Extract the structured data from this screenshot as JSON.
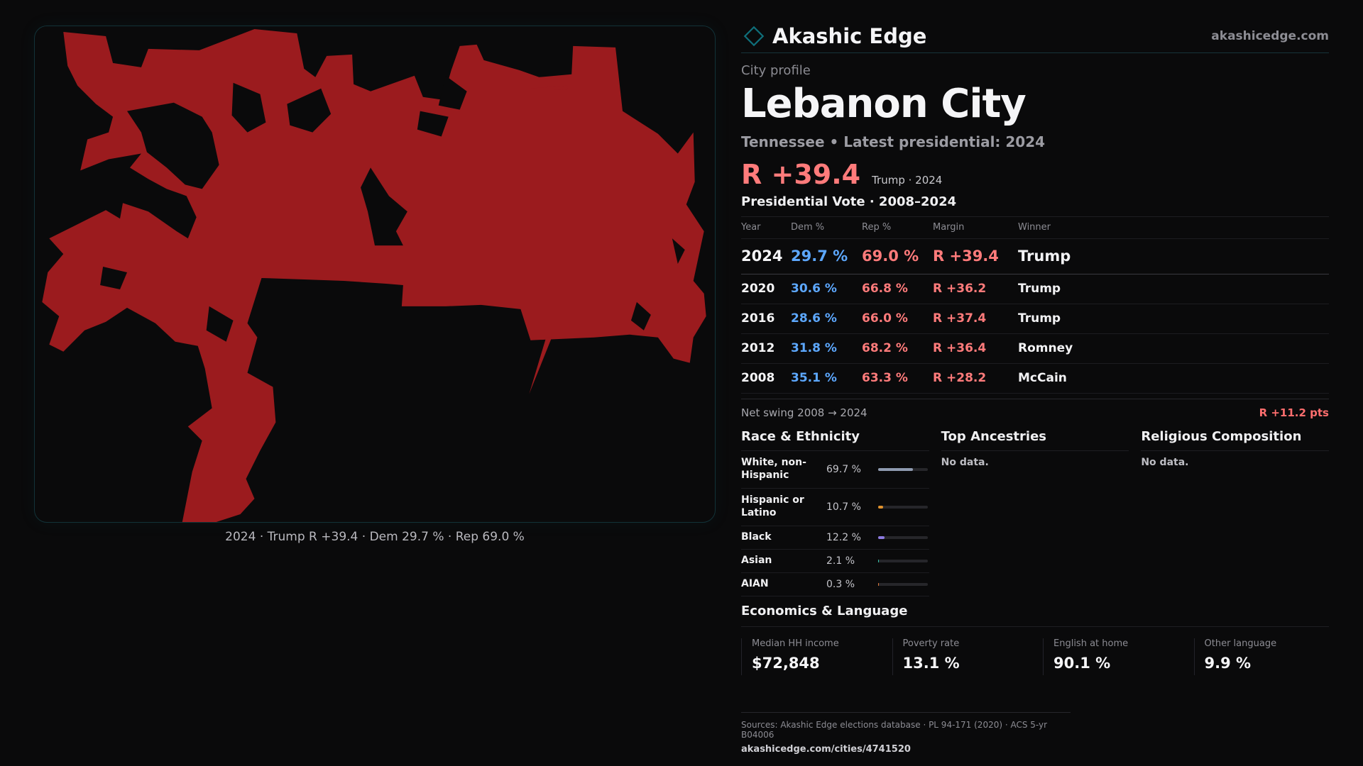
{
  "brand": {
    "name": "Akashic Edge",
    "site": "akashicedge.com",
    "accent": "#0f6f7a"
  },
  "profile": {
    "eyebrow": "City profile",
    "city": "Lebanon City",
    "subtitle": "Tennessee • Latest presidential: 2024",
    "margin": "R +39.4",
    "margin_note": "Trump · 2024"
  },
  "map": {
    "caption": "2024 · Trump R +39.4 · Dem 29.7 % · Rep 69.0 %",
    "fill_color": "#9b1b1e"
  },
  "votes": {
    "title": "Presidential Vote · 2008–2024",
    "headers": {
      "year": "Year",
      "dem": "Dem %",
      "rep": "Rep %",
      "margin": "Margin",
      "winner": "Winner"
    },
    "rows": [
      {
        "year": "2024",
        "dem": "29.7 %",
        "rep": "69.0 %",
        "margin": "R +39.4",
        "winner": "Trump"
      },
      {
        "year": "2020",
        "dem": "30.6 %",
        "rep": "66.8 %",
        "margin": "R +36.2",
        "winner": "Trump"
      },
      {
        "year": "2016",
        "dem": "28.6 %",
        "rep": "66.0 %",
        "margin": "R +37.4",
        "winner": "Trump"
      },
      {
        "year": "2012",
        "dem": "31.8 %",
        "rep": "68.2 %",
        "margin": "R +36.4",
        "winner": "Romney"
      },
      {
        "year": "2008",
        "dem": "35.1 %",
        "rep": "63.3 %",
        "margin": "R +28.2",
        "winner": "McCain"
      }
    ],
    "swing_label": "Net swing 2008 → 2024",
    "swing_value": "R +11.2 pts"
  },
  "race": {
    "title": "Race & Ethnicity",
    "rows": [
      {
        "label": "White, non-Hispanic",
        "pct": "69.7 %",
        "value": 69.7,
        "color": "#8f9bb0"
      },
      {
        "label": "Hispanic or Latino",
        "pct": "10.7 %",
        "value": 10.7,
        "color": "#e0922c"
      },
      {
        "label": "Black",
        "pct": "12.2 %",
        "value": 12.2,
        "color": "#8d7ae0"
      },
      {
        "label": "Asian",
        "pct": "2.1 %",
        "value": 2.1,
        "color": "#33c6a8"
      },
      {
        "label": "AIAN",
        "pct": "0.3 %",
        "value": 0.3,
        "color": "#e07a3a"
      }
    ]
  },
  "ancestries": {
    "title": "Top Ancestries",
    "empty": "No data."
  },
  "religion": {
    "title": "Religious Composition",
    "empty": "No data."
  },
  "economics": {
    "title": "Economics & Language",
    "cells": [
      {
        "label": "Median HH income",
        "value": "$72,848"
      },
      {
        "label": "Poverty rate",
        "value": "13.1 %"
      },
      {
        "label": "English at home",
        "value": "90.1 %"
      },
      {
        "label": "Other language",
        "value": "9.9 %"
      }
    ]
  },
  "sources": {
    "text": "Sources: Akashic Edge elections database · PL 94-171 (2020) · ACS 5-yr B04006",
    "url": "akashicedge.com/cities/4741520"
  }
}
